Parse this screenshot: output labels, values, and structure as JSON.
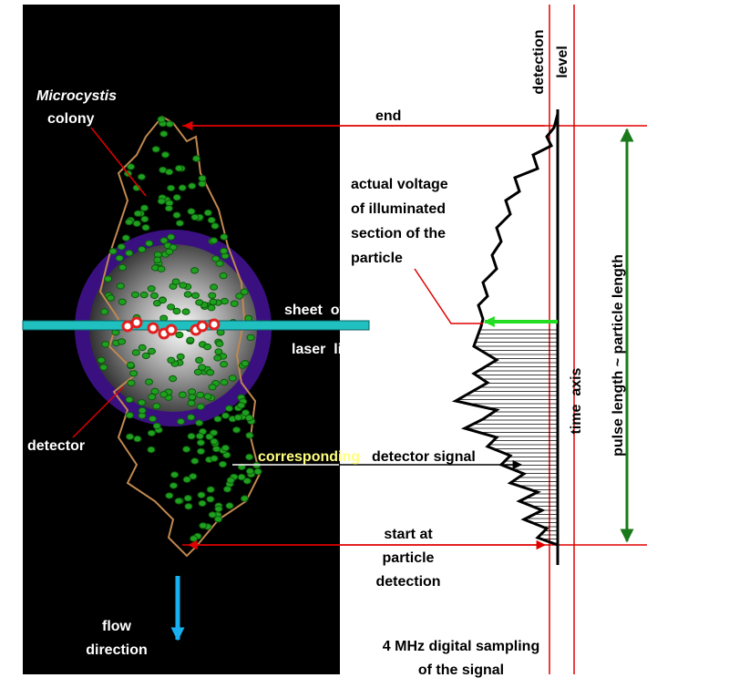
{
  "labels": {
    "species": "Microcystis",
    "colony": "colony",
    "end": "end",
    "detection_level": [
      "detection",
      "level"
    ],
    "actual_voltage": [
      "actual voltage",
      "of illuminated",
      "section of the",
      "particle"
    ],
    "sheet_of": "sheet  of",
    "laser_light": "laser  light",
    "detector": "detector",
    "corresponding": "corresponding",
    "detector_signal": "detector signal",
    "time_axis": "time  axis",
    "pulse_length": "pulse length ~ particle length",
    "start": [
      "start at",
      "particle",
      "detection"
    ],
    "flow": [
      "flow",
      "direction"
    ],
    "sampling": [
      "4 MHz digital sampling",
      "of the signal"
    ]
  }
}
